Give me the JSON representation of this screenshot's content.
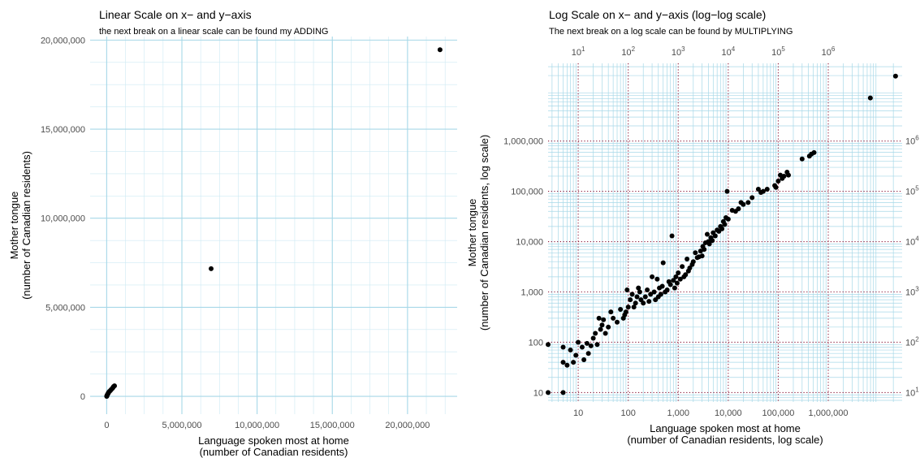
{
  "chart_data": [
    {
      "type": "scatter",
      "title": "Linear Scale on x− and y−axis",
      "subtitle": "the next break on a linear scale can be found my ADDING",
      "xlabel": [
        "Language spoken most at home",
        "(number of Canadian residents)"
      ],
      "ylabel": [
        "Mother tongue",
        "(number of Canadian residents)"
      ],
      "xlim": [
        -1100000,
        23300000
      ],
      "ylim": [
        -1000000,
        20200000
      ],
      "x_ticks": [
        0,
        5000000,
        10000000,
        15000000,
        20000000
      ],
      "x_tick_labels": [
        "0",
        "5,000,000",
        "10,000,000",
        "15,000,000",
        "20,000,000"
      ],
      "y_ticks": [
        0,
        5000000,
        10000000,
        15000000,
        20000000
      ],
      "y_tick_labels": [
        "0",
        "5,000,000",
        "10,000,000",
        "15,000,000",
        "20,000,000"
      ],
      "grid": true,
      "points": [
        [
          22160000,
          19460000
        ],
        [
          6943000,
          7167000
        ],
        [
          520000,
          590000
        ],
        [
          460000,
          550000
        ],
        [
          420000,
          500000
        ],
        [
          380000,
          450000
        ],
        [
          300000,
          380000
        ],
        [
          250000,
          330000
        ],
        [
          200000,
          290000
        ],
        [
          150000,
          250000
        ],
        [
          120000,
          200000
        ],
        [
          100000,
          170000
        ],
        [
          80000,
          140000
        ],
        [
          60000,
          110000
        ],
        [
          40000,
          80000
        ],
        [
          20000,
          40000
        ],
        [
          10000,
          15000
        ],
        [
          5000,
          5000
        ],
        [
          1000,
          1000
        ]
      ]
    },
    {
      "type": "scatter",
      "title": "Log Scale on x− and y−axis (log−log scale)",
      "subtitle": "The next break on a log scale can be found by MULTIPLYING",
      "xlabel": [
        "Language spoken most at home",
        "(number of Canadian residents, log scale)"
      ],
      "ylabel": [
        "Mother tongue",
        "(number of Canadian residents, log scale)"
      ],
      "x_scale": "log",
      "y_scale": "log",
      "xlim": [
        2.5,
        30000000
      ],
      "ylim": [
        6.5,
        35000000
      ],
      "x_ticks": [
        10,
        100,
        1000,
        10000,
        100000,
        1000000
      ],
      "x_tick_labels": [
        "10",
        "100",
        "1,000",
        "10,000",
        "100,000",
        "1,000,000"
      ],
      "y_ticks": [
        10,
        100,
        1000,
        10000,
        100000,
        1000000
      ],
      "y_tick_labels": [
        "10",
        "100",
        "1,000",
        "10,000",
        "100,000",
        "1,000,000"
      ],
      "top_axis_labels": [
        "10^1",
        "10^2",
        "10^3",
        "10^4",
        "10^5",
        "10^6"
      ],
      "right_axis_labels": [
        "10^1",
        "10^2",
        "10^3",
        "10^4",
        "10^5",
        "10^6"
      ],
      "annotation_logticks": true,
      "grid": true,
      "points": [
        [
          22160000,
          19460000
        ],
        [
          6943000,
          7167000
        ],
        [
          520000,
          590000
        ],
        [
          460000,
          550000
        ],
        [
          420000,
          500000
        ],
        [
          300000,
          440000
        ],
        [
          150000,
          240000
        ],
        [
          160000,
          210000
        ],
        [
          130000,
          200000
        ],
        [
          120000,
          180000
        ],
        [
          110000,
          210000
        ],
        [
          100000,
          160000
        ],
        [
          90000,
          120000
        ],
        [
          85000,
          130000
        ],
        [
          60000,
          110000
        ],
        [
          50000,
          100000
        ],
        [
          45000,
          95000
        ],
        [
          40000,
          110000
        ],
        [
          30000,
          75000
        ],
        [
          25000,
          60000
        ],
        [
          20000,
          55000
        ],
        [
          18000,
          60000
        ],
        [
          16000,
          45000
        ],
        [
          14000,
          40000
        ],
        [
          12000,
          42000
        ],
        [
          10000,
          28000
        ],
        [
          9500,
          100000
        ],
        [
          9000,
          30000
        ],
        [
          8500,
          22000
        ],
        [
          8000,
          25000
        ],
        [
          7500,
          18000
        ],
        [
          7000,
          20000
        ],
        [
          6500,
          16000
        ],
        [
          6000,
          17000
        ],
        [
          5500,
          13000
        ],
        [
          5000,
          15000
        ],
        [
          4800,
          10500
        ],
        [
          4500,
          12000
        ],
        [
          4200,
          9000
        ],
        [
          4000,
          10000
        ],
        [
          3800,
          14000
        ],
        [
          3500,
          9500
        ],
        [
          3300,
          7000
        ],
        [
          3100,
          8000
        ],
        [
          3000,
          5200
        ],
        [
          2800,
          6500
        ],
        [
          2600,
          5000
        ],
        [
          2400,
          4800
        ],
        [
          2200,
          6000
        ],
        [
          2000,
          4000
        ],
        [
          1900,
          3500
        ],
        [
          1700,
          3000
        ],
        [
          1600,
          2600
        ],
        [
          1500,
          4500
        ],
        [
          1400,
          2200
        ],
        [
          1300,
          2000
        ],
        [
          1200,
          3200
        ],
        [
          1100,
          1800
        ],
        [
          1000,
          2400
        ],
        [
          950,
          1500
        ],
        [
          900,
          2000
        ],
        [
          850,
          1200
        ],
        [
          800,
          1700
        ],
        [
          750,
          13000
        ],
        [
          700,
          1400
        ],
        [
          650,
          1600
        ],
        [
          600,
          1100
        ],
        [
          550,
          1000
        ],
        [
          500,
          3800
        ],
        [
          480,
          1300
        ],
        [
          450,
          900
        ],
        [
          420,
          1200
        ],
        [
          400,
          800
        ],
        [
          380,
          1800
        ],
        [
          350,
          700
        ],
        [
          330,
          1000
        ],
        [
          300,
          2000
        ],
        [
          280,
          900
        ],
        [
          260,
          650
        ],
        [
          240,
          1100
        ],
        [
          220,
          800
        ],
        [
          200,
          600
        ],
        [
          180,
          700
        ],
        [
          170,
          1000
        ],
        [
          160,
          1200
        ],
        [
          150,
          800
        ],
        [
          140,
          600
        ],
        [
          130,
          500
        ],
        [
          120,
          900
        ],
        [
          110,
          700
        ],
        [
          100,
          500
        ],
        [
          95,
          1100
        ],
        [
          90,
          400
        ],
        [
          85,
          350
        ],
        [
          80,
          300
        ],
        [
          70,
          450
        ],
        [
          60,
          250
        ],
        [
          50,
          300
        ],
        [
          45,
          400
        ],
        [
          40,
          200
        ],
        [
          35,
          150
        ],
        [
          32,
          280
        ],
        [
          30,
          220
        ],
        [
          28,
          180
        ],
        [
          26,
          300
        ],
        [
          24,
          90
        ],
        [
          22,
          150
        ],
        [
          20,
          120
        ],
        [
          18,
          85
        ],
        [
          16,
          60
        ],
        [
          15,
          95
        ],
        [
          13,
          45
        ],
        [
          12,
          80
        ],
        [
          10,
          100
        ],
        [
          9,
          55
        ],
        [
          8,
          40
        ],
        [
          7,
          70
        ],
        [
          6,
          35
        ],
        [
          5,
          80
        ],
        [
          5,
          40
        ],
        [
          5,
          10
        ],
        [
          2.5,
          90
        ],
        [
          2.5,
          10
        ]
      ]
    }
  ]
}
